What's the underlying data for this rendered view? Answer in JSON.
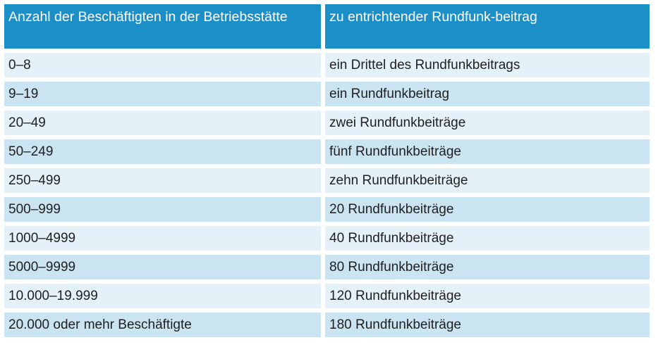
{
  "table": {
    "headers": [
      "Anzahl der Beschäftigten in der Betriebsstätte",
      "zu entrichtender Rundfunk-beitrag"
    ],
    "rows": [
      [
        "0–8",
        "ein Drittel des Rundfunkbeitrags"
      ],
      [
        "9–19",
        "ein Rundfunkbeitrag"
      ],
      [
        "20–49",
        "zwei Rundfunkbeiträge"
      ],
      [
        "50–249",
        "fünf Rundfunkbeiträge"
      ],
      [
        "250–499",
        "zehn Rundfunkbeiträge"
      ],
      [
        "500–999",
        "20 Rundfunkbeiträge"
      ],
      [
        "1000–4999",
        "40 Rundfunkbeiträge"
      ],
      [
        "5000–9999",
        "80 Rundfunkbeiträge"
      ],
      [
        "10.000–19.999",
        "120 Rundfunkbeiträge"
      ],
      [
        "20.000 oder mehr Beschäftigte",
        "180 Rundfunkbeiträge"
      ]
    ],
    "colors": {
      "header_bg": "#1b8fc6",
      "header_text": "#ffffff",
      "row_light": "#e5f1f8",
      "row_mid": "#cbe4f1"
    }
  }
}
